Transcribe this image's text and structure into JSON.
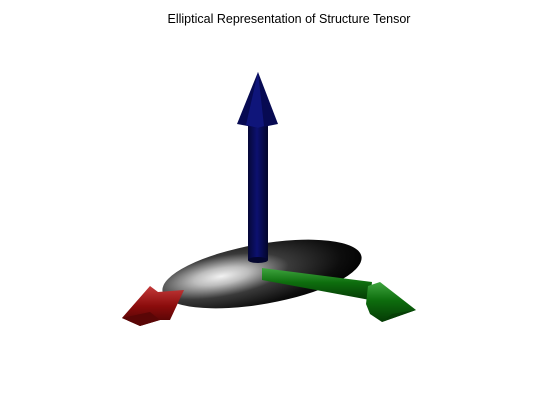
{
  "figure": {
    "title": "Elliptical Representation of Structure Tensor"
  },
  "colors": {
    "background": "#ffffff",
    "ellipsoid": "#111111",
    "ellipsoid_highlight": "#d8d8d8",
    "arrow_vertical": "#070a52",
    "arrow_right": "#0b6a0b",
    "arrow_left": "#8a0c0c"
  },
  "scene": {
    "objects": [
      "ellipsoid",
      "blue-vertical-arrow",
      "green-arrow",
      "red-arrow"
    ]
  }
}
